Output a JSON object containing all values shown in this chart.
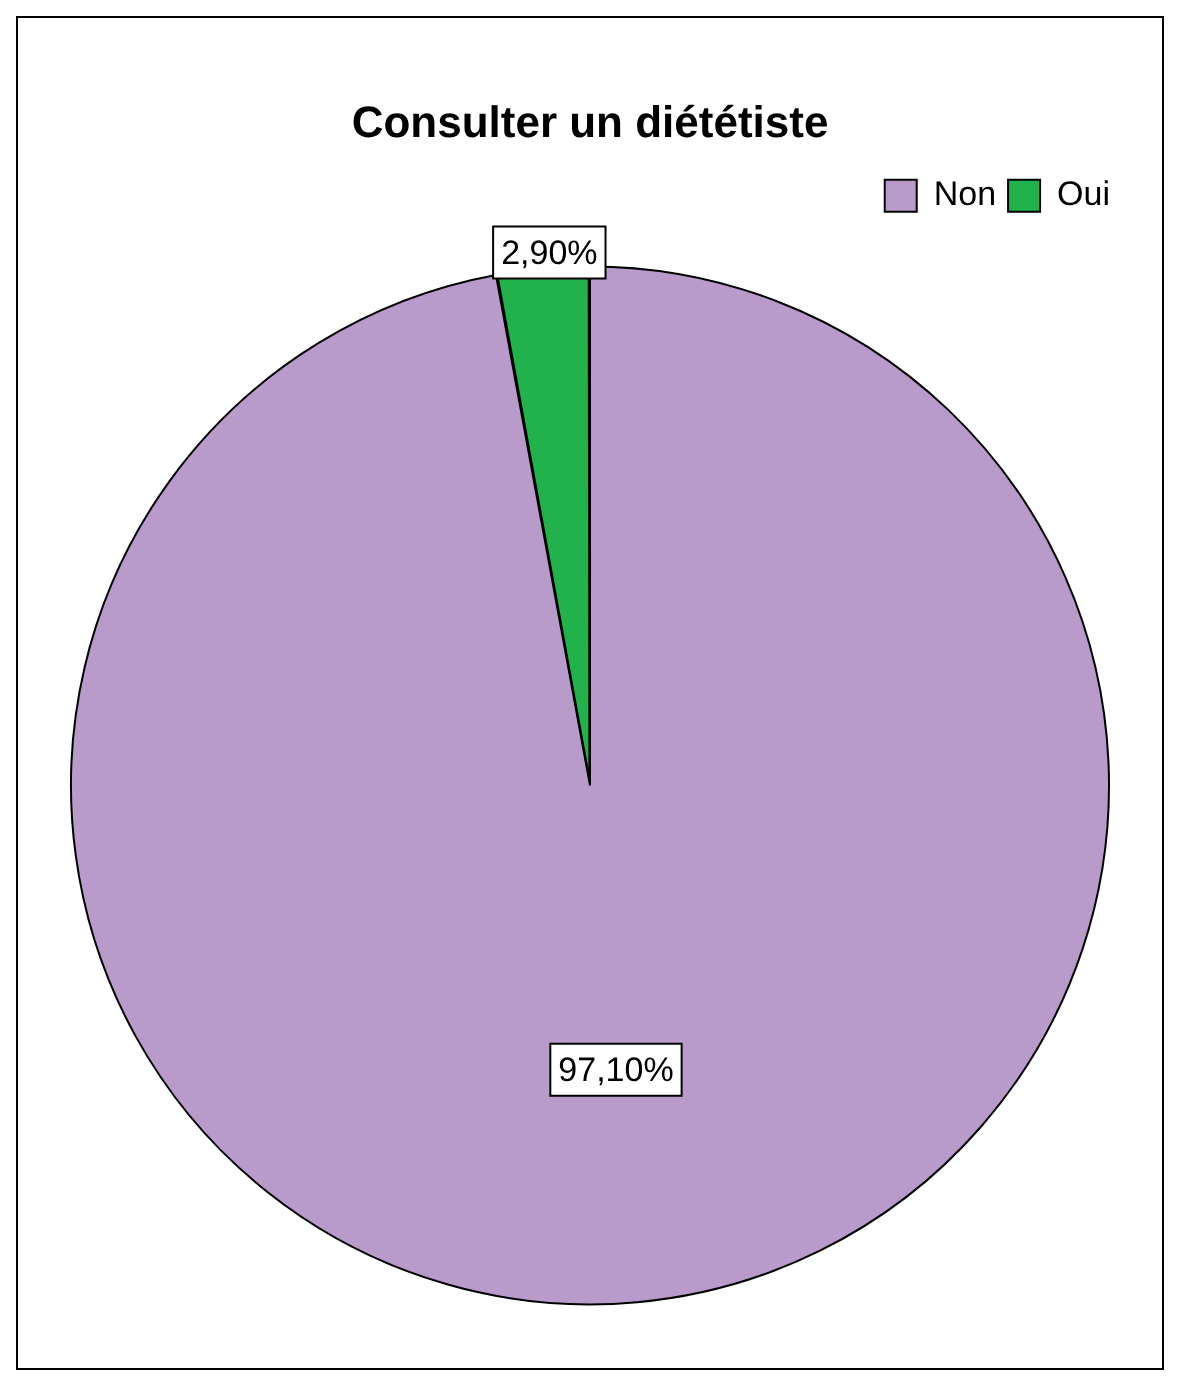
{
  "chart_data": {
    "type": "pie",
    "title": "Consulter un diététiste",
    "categories": [
      "Non",
      "Oui"
    ],
    "values": [
      97.1,
      2.9
    ],
    "colors": [
      "#b89acb",
      "#22b24c"
    ],
    "value_labels": [
      "97,10%",
      "2,90%"
    ],
    "legend": "top right"
  }
}
